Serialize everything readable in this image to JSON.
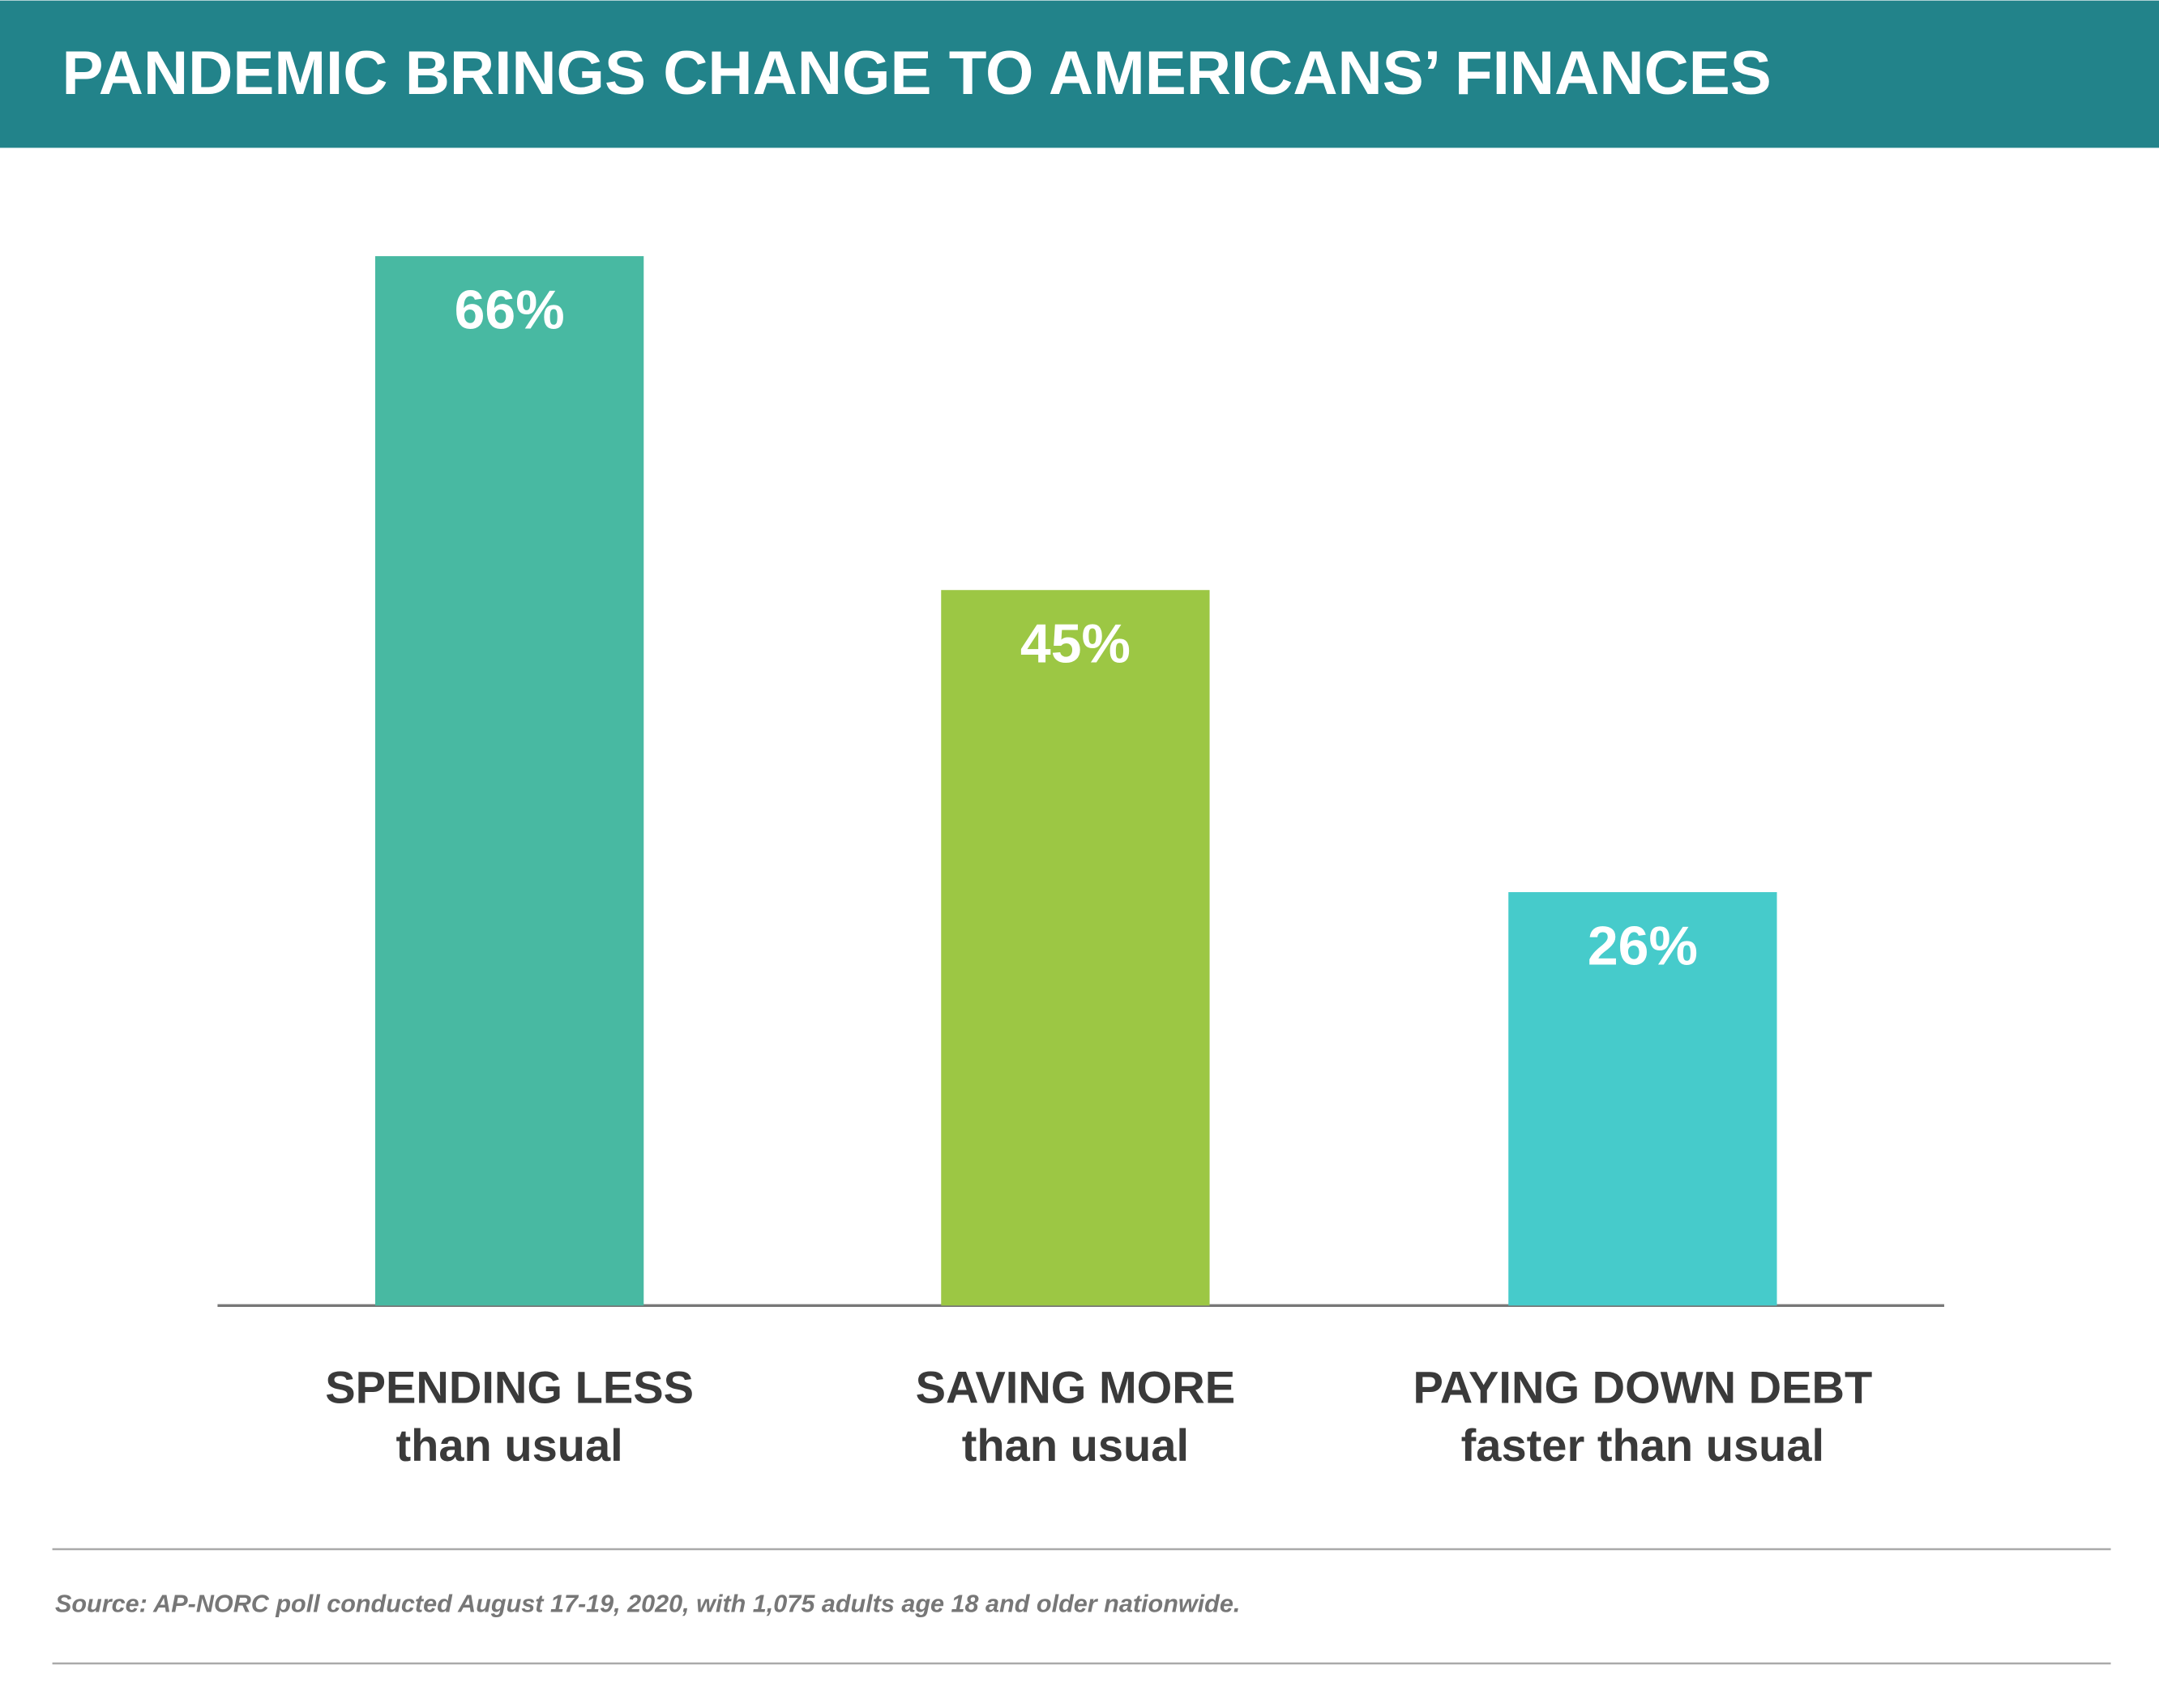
{
  "chart_data": {
    "type": "bar",
    "title": "PANDEMIC BRINGS CHANGE TO AMERICANS’ FINANCES",
    "categories": [
      [
        "SPENDING LESS",
        "than usual"
      ],
      [
        "SAVING MORE",
        "than usual"
      ],
      [
        "PAYING DOWN DEBT",
        "faster than usual"
      ]
    ],
    "values": [
      66,
      45,
      26
    ],
    "value_labels": [
      "66%",
      "45%",
      "26%"
    ],
    "colors": [
      "#48b9a2",
      "#9cc744",
      "#46cbcb"
    ],
    "ylim": [
      0,
      70
    ],
    "source": "Source: AP-NORC poll conducted August 17-19, 2020, with 1,075 adults age 18 and older nationwide."
  }
}
